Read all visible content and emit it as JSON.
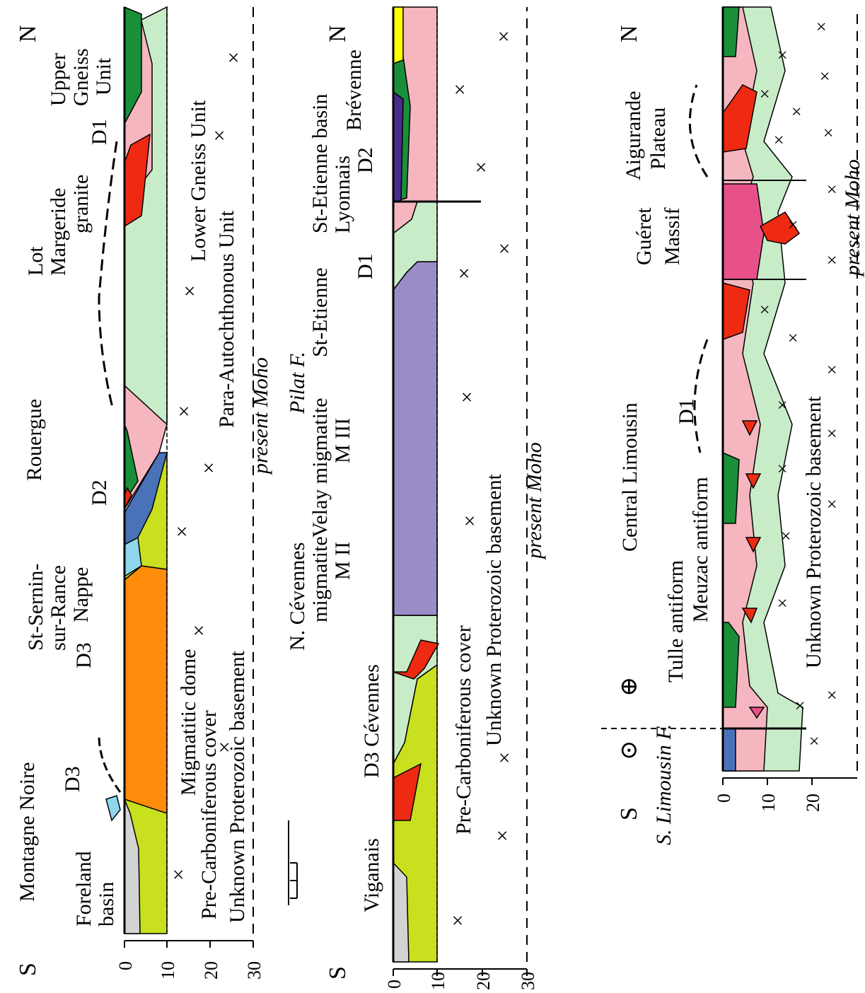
{
  "colors": {
    "foreland": "#d3d3d3",
    "pre_carboniferous_cover": "#c8e01e",
    "migmatite_orange": "#ff8c0a",
    "nappe_blue": "#4a72b8",
    "light_blue": "#8fd6ec",
    "green_dark": "#1a8f3a",
    "pink": "#f5b6c0",
    "light_green": "#c8ecc8",
    "red_granite": "#ee2a12",
    "velay_purple": "#9b8dc8",
    "bright_pink": "#e8508a",
    "yellow": "#ffff00",
    "dark_purple": "#4a2a8a"
  },
  "section1": {
    "compass_s": "S",
    "compass_n": "N",
    "depth_ticks": [
      "0",
      "10",
      "20",
      "30"
    ],
    "labels": {
      "foreland_1": "Foreland",
      "foreland_2": "basin",
      "montagne_noire": "Montagne Noire",
      "d3_a": "D3",
      "d3_b": "D3",
      "st_sernin_1": "St-Sernin-",
      "st_sernin_2": "sur-Rance",
      "st_sernin_3": "Nappe",
      "d2": "D2",
      "rouergue": "Rouergue",
      "lot": "Lot",
      "margeride_1": "Margeride",
      "margeride_2": "granite",
      "d1": "D1",
      "upper_gneiss_1": "Upper",
      "upper_gneiss_2": "Gneiss",
      "upper_gneiss_3": "Unit",
      "migmatitic_dome": "Migmatitic dome",
      "pre_carb_cover": "Pre-Carboniferous cover",
      "unknown_basement": "Unknown Proterozoic basement",
      "lower_gneiss": "Lower Gneiss Unit",
      "para_autochthonous": "Para-Autochthonous Unit",
      "present_moho": "present Moho"
    }
  },
  "section2": {
    "compass_s": "S",
    "compass_n": "N",
    "depth_ticks": [
      "0",
      "10",
      "20",
      "30"
    ],
    "labels": {
      "viganais": "Viganais",
      "d3_cevennes": "D3 Cévennes",
      "n_cevennes_1": "N. Cévennes",
      "n_cevennes_2": "migmatite",
      "n_cevennes_3": "M II",
      "velay_1": "Velay migmatite",
      "velay_2": "M III",
      "pilat": "Pilat F.",
      "st_etienne_a": "St-Etienne",
      "st_etienne_b": "St-Etienne basin",
      "d1": "D1",
      "lyonnais": "Lyonnais",
      "d2": "D2",
      "brevenne": "Brévenne",
      "pre_carb_cover": "Pre-Carboniferous cover",
      "unknown_basement": "Unknown Proterozoic basement",
      "present_moho": "present Moho"
    }
  },
  "section3": {
    "compass_s": "S",
    "compass_n": "N",
    "depth_ticks": [
      "0",
      "10",
      "20"
    ],
    "labels": {
      "s_limousin": "S. Limousin F.",
      "dot_symbol": "⊙",
      "cross_symbol": "⊕",
      "tulle": "Tulle antiform",
      "meuzac": "Meuzac antiform",
      "central_limousin": "Central Limousin",
      "d1": "D1",
      "gueret_1": "Guéret",
      "gueret_2": "Massif",
      "aigurande_1": "Aigurande",
      "aigurande_2": "Plateau",
      "unknown_basement": "Unknown Proterozoic basement",
      "present_moho": "present Moho"
    }
  }
}
